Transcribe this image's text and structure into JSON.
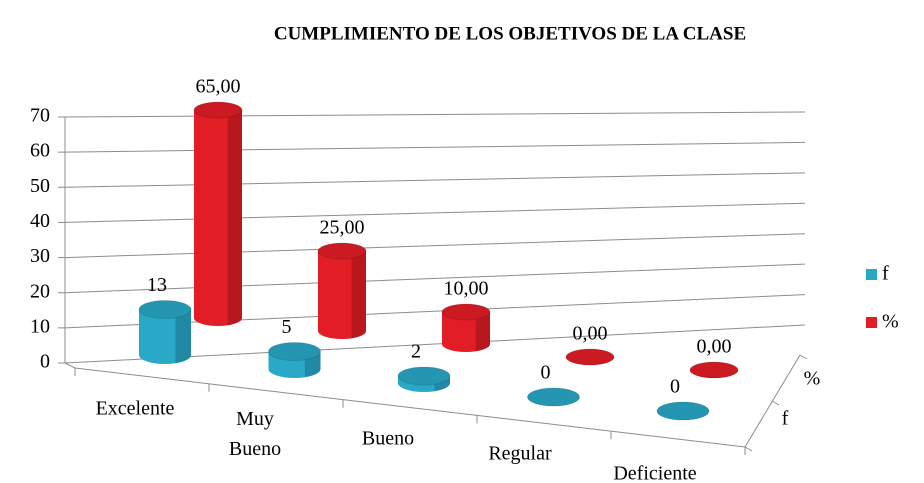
{
  "chart_data": {
    "type": "bar3d",
    "title": "CUMPLIMIENTO DE LOS OBJETIVOS DE LA CLASE",
    "categories": [
      "Excelente",
      "Muy Bueno",
      "Bueno",
      "Regular",
      "Deficiente"
    ],
    "series": [
      {
        "name": "f",
        "color": "#29a8c7",
        "values": [
          13,
          5,
          2,
          0,
          0
        ]
      },
      {
        "name": "%",
        "color": "#e21d25",
        "values": [
          65,
          25,
          10,
          0,
          0
        ],
        "value_labels": [
          "65,00",
          "25,00",
          "10,00",
          "0,00",
          "0,00"
        ]
      }
    ],
    "ylim": [
      0,
      70
    ],
    "yticks": [
      0,
      10,
      20,
      30,
      40,
      50,
      60,
      70
    ],
    "grid": true,
    "legend": "right"
  }
}
